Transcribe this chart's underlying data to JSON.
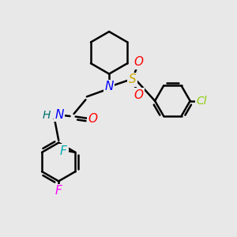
{
  "bg_color": "#e8e8e8",
  "bond_color": "#000000",
  "bond_width": 1.8,
  "atoms": {
    "N": {
      "color": "#0000ff"
    },
    "S": {
      "color": "#ccaa00"
    },
    "O": {
      "color": "#ff0000"
    },
    "Cl": {
      "color": "#88cc00"
    },
    "F_top": {
      "color": "#00aaaa"
    },
    "F_bot": {
      "color": "#ff00ff"
    },
    "H": {
      "color": "#007070"
    },
    "NH_N": {
      "color": "#0000ff"
    },
    "NH_H": {
      "color": "#007070"
    }
  },
  "fontsize": 10
}
